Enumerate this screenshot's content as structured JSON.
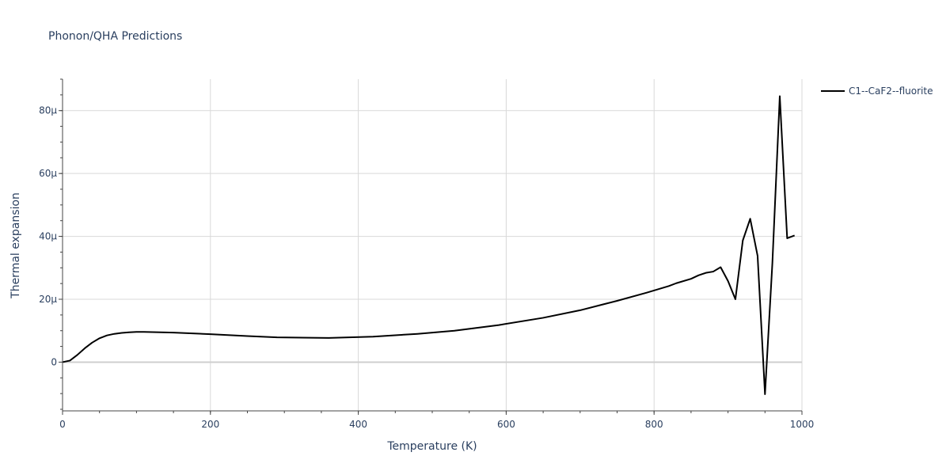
{
  "chart_data": {
    "type": "line",
    "title": "Phonon/QHA Predictions",
    "xlabel": "Temperature (K)",
    "ylabel": "Thermal expansion",
    "xlim": [
      0,
      1000
    ],
    "ylim": [
      -15.5,
      90
    ],
    "x_ticks": [
      0,
      200,
      400,
      600,
      800,
      1000
    ],
    "x_tick_labels": [
      "0",
      "200",
      "400",
      "600",
      "800",
      "1000"
    ],
    "y_ticks": [
      0,
      20,
      40,
      60,
      80
    ],
    "y_tick_labels": [
      "0",
      "20μ",
      "40μ",
      "60μ",
      "80μ"
    ],
    "grid": true,
    "legend_position": "top-right",
    "series": [
      {
        "name": "C1--CaF2--fluorite",
        "color": "#000000",
        "x": [
          0,
          10,
          20,
          30,
          40,
          50,
          60,
          70,
          80,
          90,
          100,
          110,
          150,
          200,
          250,
          290,
          360,
          420,
          480,
          530,
          590,
          650,
          700,
          750,
          790,
          820,
          830,
          850,
          860,
          870,
          880,
          890,
          900,
          910,
          920,
          930,
          940,
          950,
          960,
          970,
          980,
          990
        ],
        "y": [
          0,
          0.5,
          2.3,
          4.4,
          6.2,
          7.6,
          8.5,
          9.0,
          9.3,
          9.5,
          9.6,
          9.6,
          9.4,
          8.9,
          8.3,
          7.9,
          7.7,
          8.1,
          9.0,
          10.0,
          11.8,
          14.1,
          16.5,
          19.5,
          22.1,
          24.2,
          25.1,
          26.5,
          27.6,
          28.4,
          28.8,
          30.2,
          25.8,
          20.0,
          38.7,
          45.6,
          33.8,
          -10.2,
          31.5,
          84.6,
          39.4,
          40.3
        ]
      }
    ]
  }
}
